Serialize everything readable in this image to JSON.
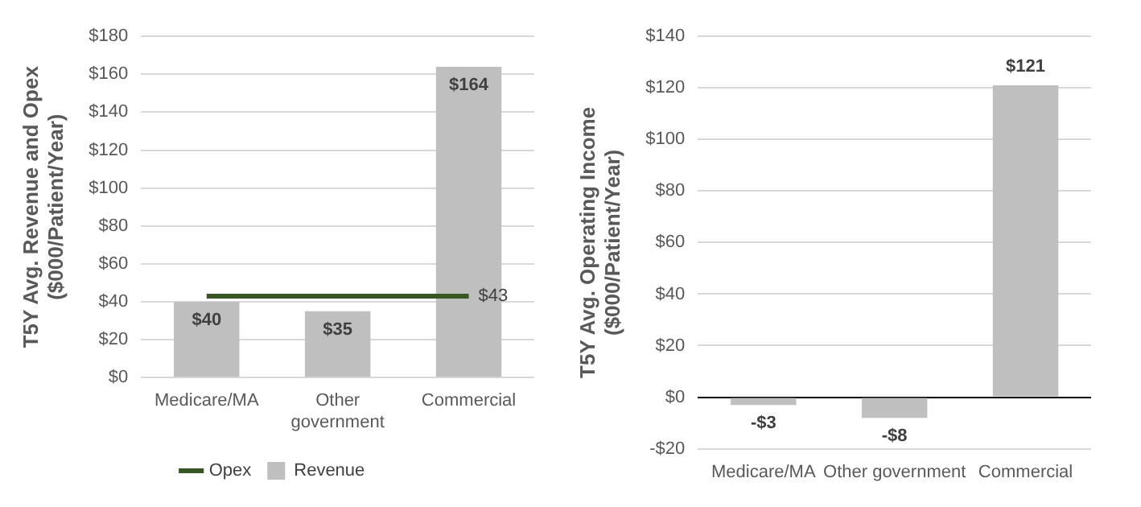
{
  "chart_data": [
    {
      "type": "bar",
      "ylabel": "T5Y Avg. Revenue and Opex\n($000/Patient/Year)",
      "categories": [
        "Medicare/MA",
        "Other government",
        "Commercial"
      ],
      "series": [
        {
          "name": "Revenue",
          "type": "bar",
          "color": "#bfbfbf",
          "values": [
            40,
            35,
            164
          ],
          "value_labels": [
            "$40",
            "$35",
            "$164"
          ]
        },
        {
          "name": "Opex",
          "type": "line",
          "color": "#375623",
          "values": [
            43,
            43,
            43
          ],
          "value_labels": [
            null,
            null,
            "$43"
          ]
        }
      ],
      "ylim": [
        0,
        180
      ],
      "yticks": [
        {
          "value": 0,
          "label": "$0"
        },
        {
          "value": 20,
          "label": "$20"
        },
        {
          "value": 40,
          "label": "$40"
        },
        {
          "value": 60,
          "label": "$60"
        },
        {
          "value": 80,
          "label": "$80"
        },
        {
          "value": 100,
          "label": "$100"
        },
        {
          "value": 120,
          "label": "$120"
        },
        {
          "value": 140,
          "label": "$140"
        },
        {
          "value": 160,
          "label": "$160"
        },
        {
          "value": 180,
          "label": "$180"
        }
      ],
      "grid": "y",
      "legend": "bottom",
      "marker": "none"
    },
    {
      "type": "bar",
      "ylabel": "T5Y Avg. Operating Income\n($000/Patient/Year)",
      "categories": [
        "Medicare/MA",
        "Other government",
        "Commercial"
      ],
      "series": [
        {
          "color": "#bfbfbf",
          "values": [
            -3,
            -8,
            121
          ],
          "value_labels": [
            "-$3",
            "-$8",
            "$121"
          ]
        }
      ],
      "ylim": [
        -20,
        140
      ],
      "yticks": [
        {
          "value": -20,
          "label": "-$20"
        },
        {
          "value": 0,
          "label": "$0"
        },
        {
          "value": 20,
          "label": "$20"
        },
        {
          "value": 40,
          "label": "$40"
        },
        {
          "value": 60,
          "label": "$60"
        },
        {
          "value": 80,
          "label": "$80"
        },
        {
          "value": 100,
          "label": "$100"
        },
        {
          "value": 120,
          "label": "$120"
        },
        {
          "value": 140,
          "label": "$140"
        }
      ],
      "grid": "y"
    }
  ]
}
